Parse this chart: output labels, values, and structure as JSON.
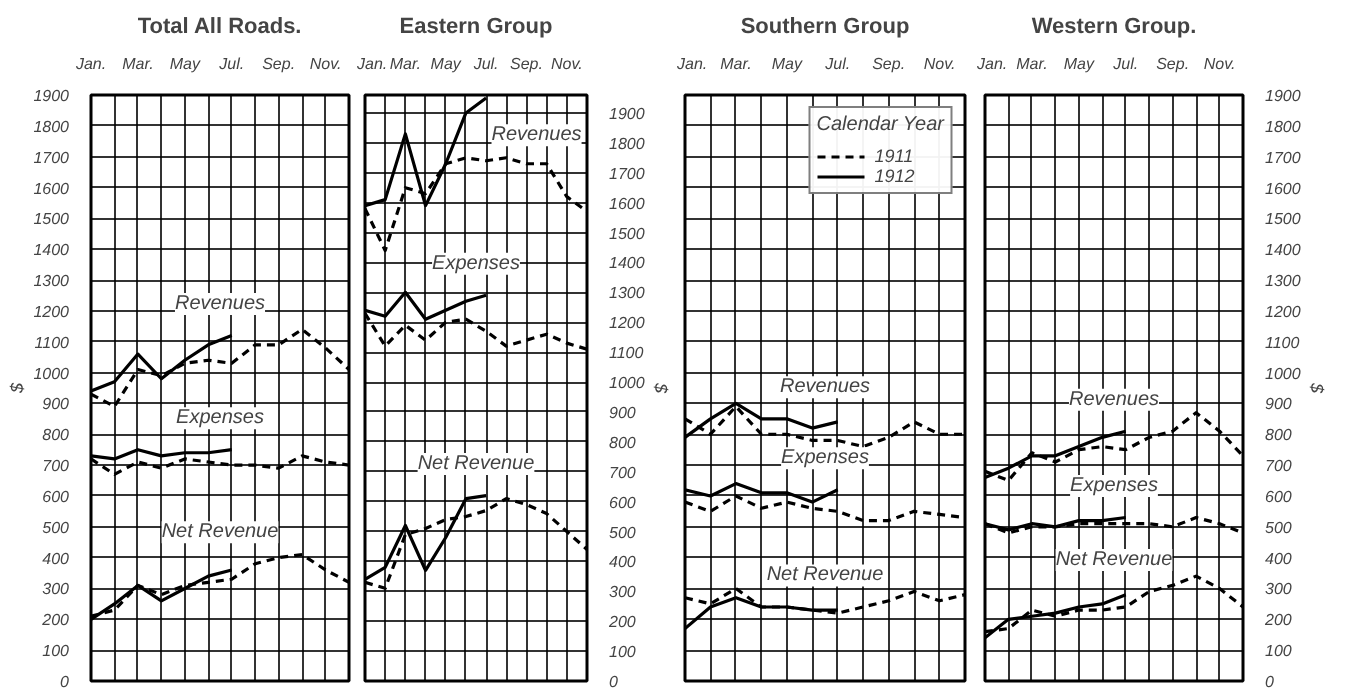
{
  "chart_data": [
    {
      "type": "line",
      "title": "Total All Roads.",
      "ylabel": "$",
      "categories": [
        "Jan.",
        null,
        "Mar.",
        null,
        "May",
        null,
        "Jul.",
        null,
        "Sep.",
        null,
        "Nov.",
        null
      ],
      "ylim": [
        0,
        1900
      ],
      "yticks": [
        0,
        100,
        200,
        300,
        400,
        500,
        600,
        700,
        800,
        900,
        1000,
        1100,
        1200,
        1300,
        1400,
        1500,
        1600,
        1700,
        1800,
        1900
      ],
      "grid": true,
      "legend": false,
      "marker": "none",
      "annotations": [
        "Revenues",
        "Expenses",
        "Net Revenue"
      ],
      "series": [
        {
          "color": "#000000",
          "line_style": "solid",
          "values": [
            940,
            970,
            1060,
            980,
            1040,
            1090,
            1120,
            null,
            null,
            null,
            null,
            null
          ]
        },
        {
          "color": "#000000",
          "line_style": "dashed",
          "values": [
            930,
            890,
            1010,
            990,
            1030,
            1040,
            1030,
            1090,
            1090,
            1140,
            1080,
            1010
          ]
        },
        {
          "color": "#000000",
          "line_style": "solid",
          "values": [
            730,
            720,
            750,
            730,
            740,
            740,
            750,
            null,
            null,
            null,
            null,
            null
          ]
        },
        {
          "color": "#000000",
          "line_style": "dashed",
          "values": [
            720,
            670,
            710,
            690,
            720,
            710,
            700,
            700,
            690,
            730,
            710,
            700
          ]
        },
        {
          "color": "#000000",
          "line_style": "solid",
          "values": [
            200,
            250,
            310,
            260,
            300,
            340,
            360,
            null,
            null,
            null,
            null,
            null
          ]
        },
        {
          "color": "#000000",
          "line_style": "dashed",
          "values": [
            210,
            230,
            310,
            280,
            310,
            320,
            330,
            380,
            400,
            410,
            360,
            320
          ]
        }
      ]
    },
    {
      "type": "line",
      "title": "Eastern Group",
      "ylabel": "$",
      "categories": [
        "Jan.",
        null,
        "Mar.",
        null,
        "May",
        null,
        "Jul.",
        null,
        "Sep.",
        null,
        "Nov.",
        null
      ],
      "ylim": [
        0,
        1960
      ],
      "yticks": [
        0,
        100,
        200,
        300,
        400,
        500,
        600,
        700,
        800,
        900,
        1000,
        1100,
        1200,
        1300,
        1400,
        1500,
        1600,
        1700,
        1800,
        1900
      ],
      "grid": true,
      "legend": false,
      "marker": "none",
      "annotations": [
        "Revenues",
        "Expenses",
        "Net Revenue"
      ],
      "series": [
        {
          "color": "#000000",
          "line_style": "solid",
          "values": [
            1590,
            1610,
            1830,
            1590,
            1730,
            1900,
            1950,
            null,
            null,
            null,
            null,
            null
          ]
        },
        {
          "color": "#000000",
          "line_style": "dashed",
          "values": [
            1580,
            1440,
            1650,
            1630,
            1730,
            1750,
            1740,
            1750,
            1730,
            1730,
            1620,
            1570
          ]
        },
        {
          "color": "#000000",
          "line_style": "solid",
          "values": [
            1240,
            1220,
            1300,
            1210,
            1240,
            1270,
            1290,
            null,
            null,
            null,
            null,
            null
          ]
        },
        {
          "color": "#000000",
          "line_style": "dashed",
          "values": [
            1230,
            1120,
            1190,
            1140,
            1200,
            1210,
            1170,
            1120,
            1140,
            1160,
            1130,
            1110
          ]
        },
        {
          "color": "#000000",
          "line_style": "solid",
          "values": [
            340,
            380,
            520,
            370,
            480,
            610,
            620,
            null,
            null,
            null,
            null,
            null
          ]
        },
        {
          "color": "#000000",
          "line_style": "dashed",
          "values": [
            330,
            310,
            490,
            510,
            540,
            550,
            570,
            610,
            590,
            560,
            500,
            440
          ]
        }
      ]
    },
    {
      "type": "line",
      "title": "Southern Group",
      "legend_title": "Calendar Year",
      "categories": [
        "Jan.",
        null,
        "Mar.",
        null,
        "May",
        null,
        "Jul.",
        null,
        "Sep.",
        null,
        "Nov.",
        null
      ],
      "ylim": [
        0,
        1900
      ],
      "yticks": [
        0,
        100,
        200,
        300,
        400,
        500,
        600,
        700,
        800,
        900,
        1000,
        1100,
        1200,
        1300,
        1400,
        1500,
        1600,
        1700,
        1800,
        1900
      ],
      "grid": true,
      "legend": "top right",
      "marker": "none",
      "tick_labels": "x",
      "annotations": [
        "Revenues",
        "Expenses",
        "Net Revenue"
      ],
      "series": [
        {
          "name": "1911",
          "color": "#000000",
          "line_style": "dashed",
          "values": [
            850,
            800,
            890,
            800,
            800,
            780,
            780,
            760,
            790,
            840,
            800,
            800
          ]
        },
        {
          "name": "1912",
          "color": "#000000",
          "line_style": "solid",
          "values": [
            790,
            850,
            900,
            850,
            850,
            820,
            840,
            null,
            null,
            null,
            null,
            null
          ]
        },
        {
          "color": "#000000",
          "line_style": "solid",
          "values": [
            620,
            600,
            640,
            610,
            610,
            580,
            620,
            null,
            null,
            null,
            null,
            null
          ]
        },
        {
          "color": "#000000",
          "line_style": "dashed",
          "values": [
            580,
            550,
            600,
            560,
            580,
            560,
            550,
            520,
            520,
            550,
            540,
            530
          ]
        },
        {
          "color": "#000000",
          "line_style": "solid",
          "values": [
            170,
            240,
            270,
            240,
            240,
            230,
            230,
            null,
            null,
            null,
            null,
            null
          ]
        },
        {
          "color": "#000000",
          "line_style": "dashed",
          "values": [
            270,
            250,
            300,
            240,
            240,
            230,
            220,
            240,
            260,
            290,
            260,
            280
          ]
        }
      ]
    },
    {
      "type": "line",
      "title": "Western Group.",
      "ylabel": "$",
      "categories": [
        "Jan.",
        null,
        "Mar.",
        null,
        "May",
        null,
        "Jul.",
        null,
        "Sep.",
        null,
        "Nov.",
        null
      ],
      "ylim": [
        0,
        1900
      ],
      "yticks": [
        0,
        100,
        200,
        300,
        400,
        500,
        600,
        700,
        800,
        900,
        1000,
        1100,
        1200,
        1300,
        1400,
        1500,
        1600,
        1700,
        1800,
        1900
      ],
      "grid": true,
      "legend": false,
      "marker": "none",
      "annotations": [
        "Revenues",
        "Expenses",
        "Net Revenue"
      ],
      "series": [
        {
          "color": "#000000",
          "line_style": "solid",
          "values": [
            660,
            690,
            730,
            730,
            760,
            790,
            810,
            null,
            null,
            null,
            null,
            null
          ]
        },
        {
          "color": "#000000",
          "line_style": "dashed",
          "values": [
            680,
            650,
            740,
            710,
            750,
            760,
            750,
            790,
            810,
            870,
            810,
            730
          ]
        },
        {
          "color": "#000000",
          "line_style": "solid",
          "values": [
            510,
            490,
            510,
            500,
            520,
            520,
            530,
            null,
            null,
            null,
            null,
            null
          ]
        },
        {
          "color": "#000000",
          "line_style": "dashed",
          "values": [
            510,
            480,
            500,
            500,
            510,
            510,
            510,
            510,
            500,
            530,
            510,
            480
          ]
        },
        {
          "color": "#000000",
          "line_style": "solid",
          "values": [
            140,
            200,
            210,
            220,
            240,
            250,
            280,
            null,
            null,
            null,
            null,
            null
          ]
        },
        {
          "color": "#000000",
          "line_style": "dashed",
          "values": [
            160,
            170,
            230,
            210,
            230,
            230,
            240,
            290,
            310,
            340,
            300,
            240
          ]
        }
      ]
    }
  ]
}
